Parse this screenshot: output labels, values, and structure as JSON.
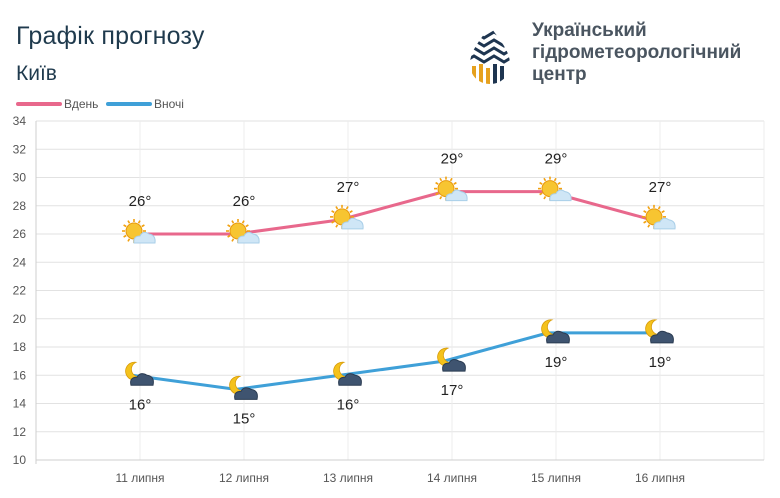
{
  "header": {
    "title": "Графік прогнозу",
    "city": "Київ"
  },
  "logo": {
    "lines": [
      "Український",
      "гідрометеорологічний",
      "центр"
    ],
    "colors": {
      "navy": "#1e3550",
      "gold": "#e6a11e"
    }
  },
  "chart_data": {
    "type": "line",
    "categories": [
      "11 липня",
      "12 липня",
      "13 липня",
      "14 липня",
      "15 липня",
      "16 липня"
    ],
    "series": [
      {
        "name": "Вдень",
        "values": [
          26,
          26,
          27,
          29,
          29,
          27
        ],
        "color": "#e8688c",
        "labels": [
          "26°",
          "26°",
          "27°",
          "29°",
          "29°",
          "27°"
        ],
        "icon": "sun-cloud-icon"
      },
      {
        "name": "Вночі",
        "values": [
          16,
          15,
          16,
          17,
          19,
          19
        ],
        "color": "#3fa0d8",
        "labels": [
          "16°",
          "15°",
          "16°",
          "17°",
          "19°",
          "19°"
        ],
        "icon": "moon-cloud-icon"
      }
    ],
    "yticks": [
      10,
      12,
      14,
      16,
      18,
      20,
      22,
      24,
      26,
      28,
      30,
      32,
      34
    ],
    "ylim": [
      10,
      34
    ],
    "grid": true,
    "legend": "top-left"
  }
}
